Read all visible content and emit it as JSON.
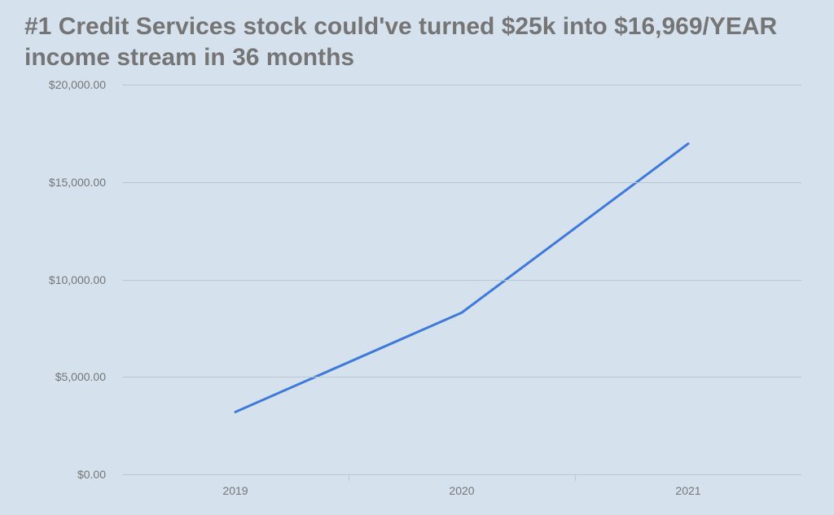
{
  "title": "#1 Credit Services stock could've turned $25k into $16,969/YEAR income stream in 36 months",
  "chart": {
    "type": "line",
    "background_color": "#d5e2ee",
    "title_color": "#757575",
    "title_fontsize": 30,
    "label_color": "#757575",
    "label_fontsize": 14,
    "grid_color": "#b9c6d3",
    "line_color": "#3f79d9",
    "line_width": 3,
    "ylim": [
      0,
      20000
    ],
    "ytick_step": 5000,
    "y_labels": [
      "$0.00",
      "$5,000.00",
      "$10,000.00",
      "$15,000.00",
      "$20,000.00"
    ],
    "x_categories": [
      "2019",
      "2020",
      "2021"
    ],
    "values": [
      3200,
      8300,
      16969
    ]
  }
}
